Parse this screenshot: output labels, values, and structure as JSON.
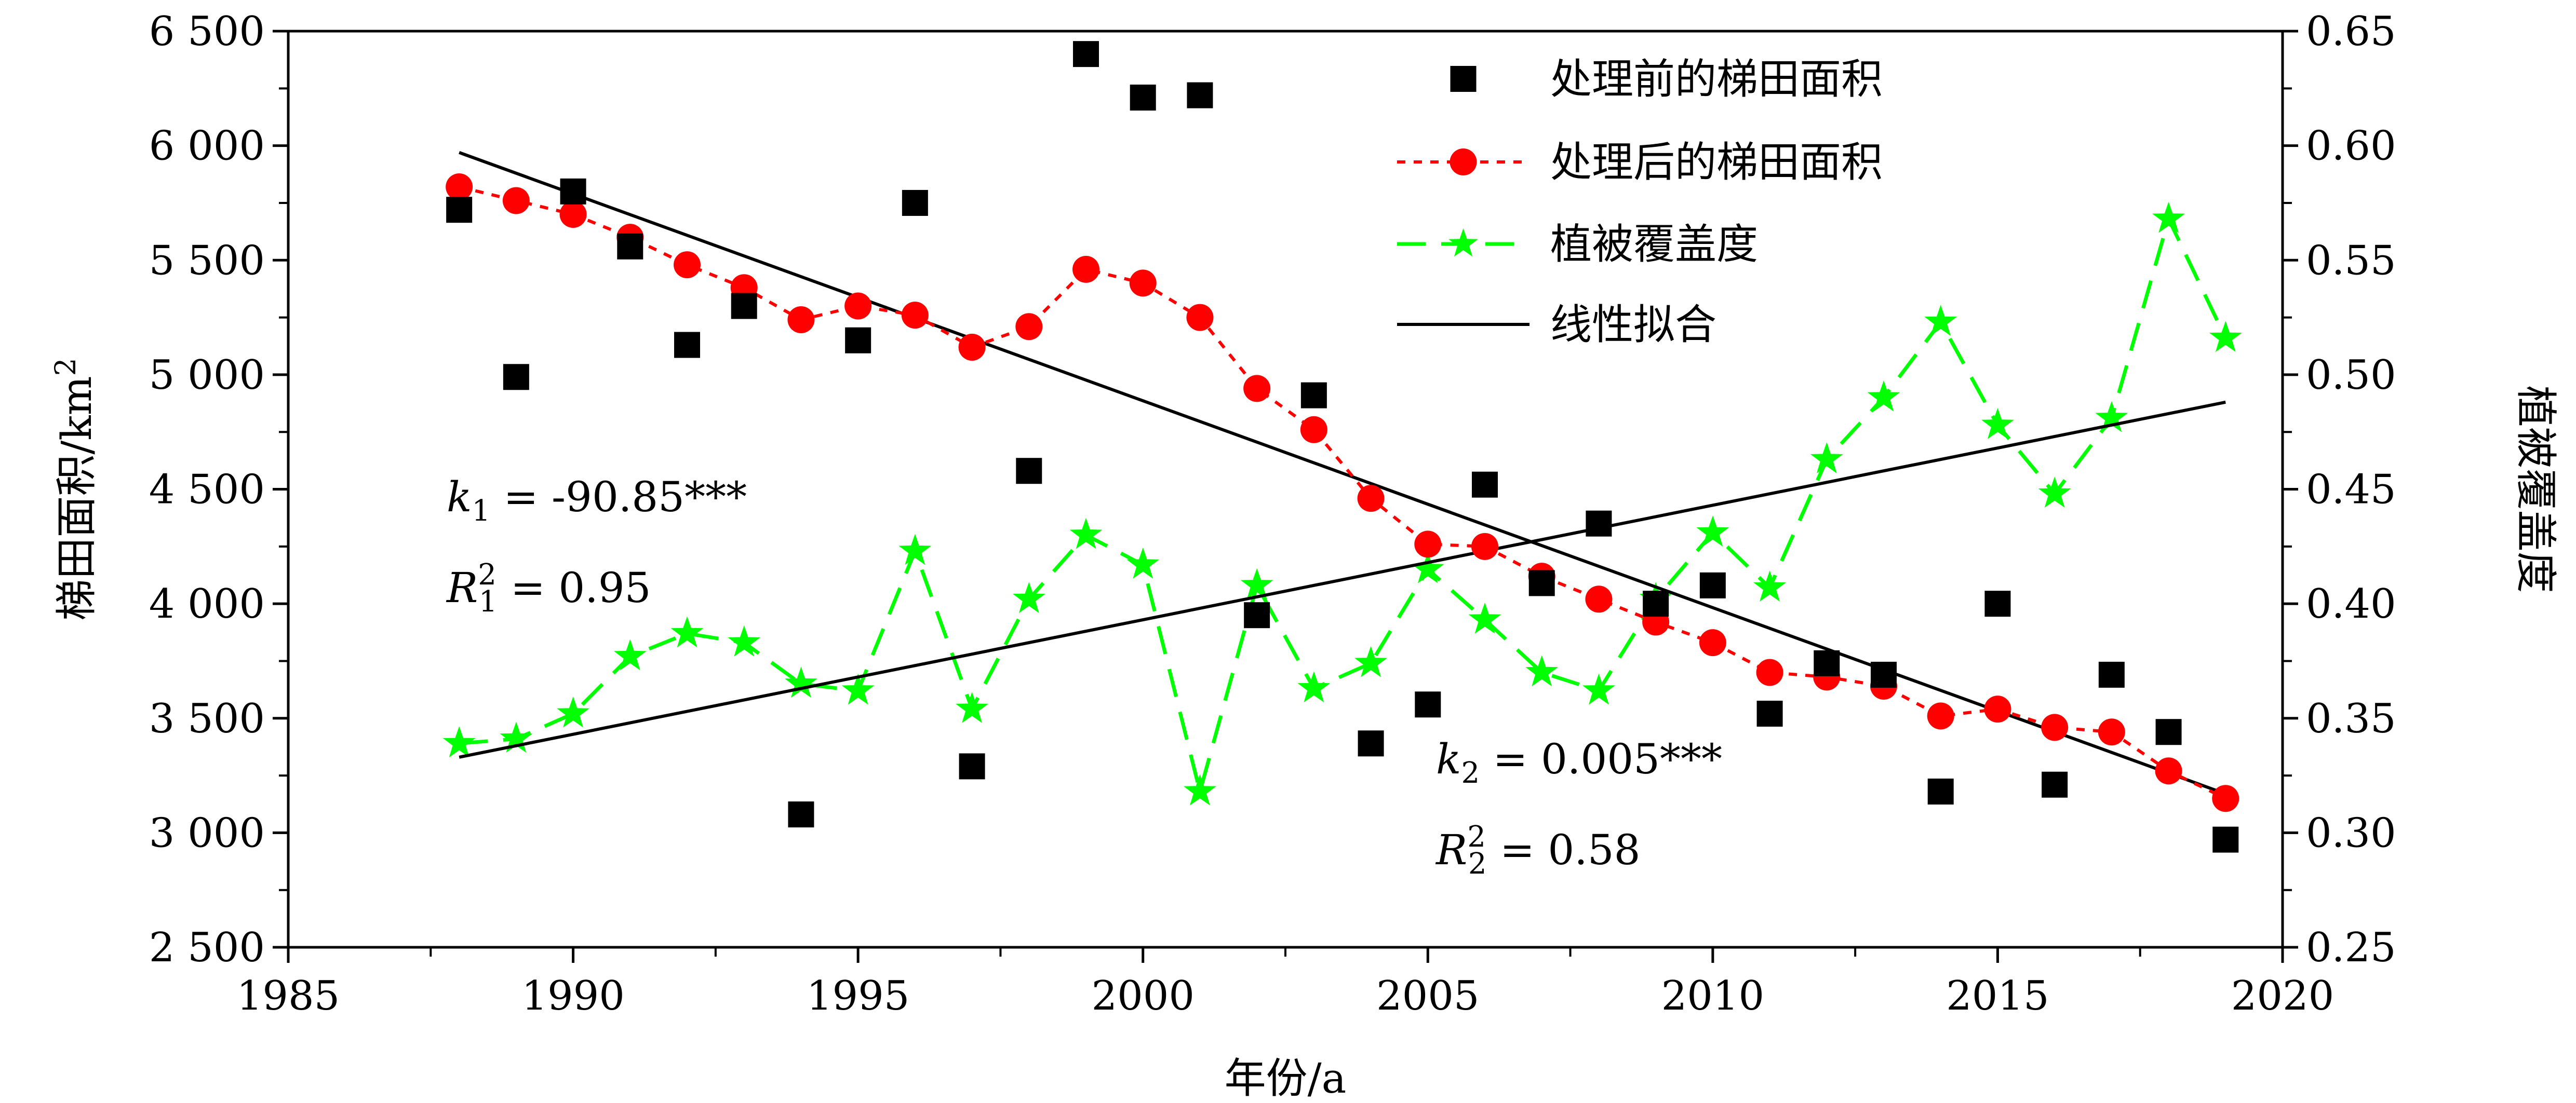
{
  "chart_data": {
    "type": "scatter",
    "x_axis": {
      "label": "年份/a",
      "range": [
        1985,
        2020
      ],
      "ticks": [
        1985,
        1990,
        1995,
        2000,
        2005,
        2010,
        2015,
        2020
      ]
    },
    "y_left": {
      "label_text": "梯田面积/km",
      "label_sup": "2",
      "range": [
        2500,
        6500
      ],
      "ticks": [
        2500,
        3000,
        3500,
        4000,
        4500,
        5000,
        5500,
        6000,
        6500
      ],
      "tick_labels": [
        "2 500",
        "3 000",
        "3 500",
        "4 000",
        "4 500",
        "5 000",
        "5 500",
        "6 000",
        "6 500"
      ]
    },
    "y_right": {
      "label": "植被覆盖度",
      "range": [
        0.25,
        0.65
      ],
      "ticks": [
        0.25,
        0.3,
        0.35,
        0.4,
        0.45,
        0.5,
        0.55,
        0.6,
        0.65
      ],
      "tick_labels": [
        "0.25",
        "0.30",
        "0.35",
        "0.40",
        "0.45",
        "0.50",
        "0.55",
        "0.60",
        "0.65"
      ]
    },
    "series": [
      {
        "name": "处理前的梯田面积",
        "axis": "left",
        "style": "scatter-square",
        "color": "#000000",
        "x": [
          1988,
          1989,
          1990,
          1991,
          1992,
          1993,
          1994,
          1995,
          1996,
          1997,
          1998,
          1999,
          2000,
          2001,
          2002,
          2003,
          2004,
          2005,
          2006,
          2007,
          2008,
          2009,
          2010,
          2011,
          2012,
          2013,
          2014,
          2015,
          2016,
          2017,
          2018,
          2019
        ],
        "y": [
          5720,
          4990,
          5800,
          5560,
          5130,
          5300,
          3080,
          5150,
          5750,
          3290,
          4580,
          6400,
          6210,
          6220,
          3950,
          4910,
          3390,
          3560,
          4520,
          4090,
          4350,
          4000,
          4080,
          3520,
          3740,
          3690,
          3180,
          4000,
          3210,
          3690,
          3440,
          2970
        ]
      },
      {
        "name": "处理后的梯田面积",
        "axis": "left",
        "style": "dotted-circle",
        "color": "#ff0000",
        "x": [
          1988,
          1989,
          1990,
          1991,
          1992,
          1993,
          1994,
          1995,
          1996,
          1997,
          1998,
          1999,
          2000,
          2001,
          2002,
          2003,
          2004,
          2005,
          2006,
          2007,
          2008,
          2009,
          2010,
          2011,
          2012,
          2013,
          2014,
          2015,
          2016,
          2017,
          2018,
          2019
        ],
        "y": [
          5820,
          5760,
          5700,
          5600,
          5480,
          5380,
          5240,
          5300,
          5260,
          5120,
          5210,
          5460,
          5400,
          5250,
          4940,
          4760,
          4460,
          4260,
          4250,
          4120,
          4020,
          3920,
          3830,
          3700,
          3680,
          3640,
          3510,
          3540,
          3460,
          3440,
          3270,
          3150
        ]
      },
      {
        "name": "植被覆盖度",
        "axis": "right",
        "style": "dashed-star",
        "color": "#00ff00",
        "x": [
          1988,
          1989,
          1990,
          1991,
          1992,
          1993,
          1994,
          1995,
          1996,
          1997,
          1998,
          1999,
          2000,
          2001,
          2002,
          2003,
          2004,
          2005,
          2006,
          2007,
          2008,
          2009,
          2010,
          2011,
          2012,
          2013,
          2014,
          2015,
          2016,
          2017,
          2018,
          2019
        ],
        "y": [
          0.339,
          0.341,
          0.352,
          0.377,
          0.387,
          0.383,
          0.365,
          0.362,
          0.423,
          0.354,
          0.402,
          0.43,
          0.417,
          0.318,
          0.408,
          0.363,
          0.374,
          0.415,
          0.393,
          0.37,
          0.362,
          0.402,
          0.431,
          0.407,
          0.463,
          0.49,
          0.523,
          0.478,
          0.448,
          0.481,
          0.568,
          0.516
        ]
      },
      {
        "name": "线性拟合",
        "style": "line",
        "color": "#000000",
        "lines": [
          {
            "axis": "left",
            "x": [
              1988,
              2019
            ],
            "y": [
              5970,
              3170
            ]
          },
          {
            "axis": "right",
            "x": [
              1988,
              2019
            ],
            "y": [
              0.333,
              0.488
            ]
          }
        ]
      }
    ],
    "annotations": [
      {
        "k_sym": "k",
        "k_sub": "1",
        "k_val": " = -90.85***",
        "r_sym": "R",
        "r_sup": "2",
        "r_sub": "1",
        "r_val": " = 0.95"
      },
      {
        "k_sym": "k",
        "k_sub": "2",
        "k_val": " = 0.005***",
        "r_sym": "R",
        "r_sup": "2",
        "r_sub": "2",
        "r_val": " = 0.58"
      }
    ],
    "legend": {
      "placement": "top-center"
    },
    "grid": false
  }
}
